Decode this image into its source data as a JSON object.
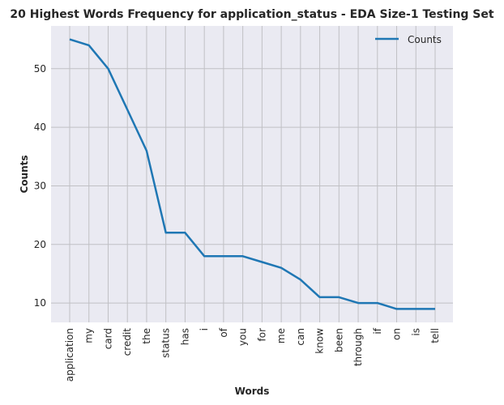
{
  "chart_data": {
    "type": "line",
    "title": "20 Highest Words Frequency for application_status - EDA Size-1 Testing Set",
    "xlabel": "Words",
    "ylabel": "Counts",
    "categories": [
      "application",
      "my",
      "card",
      "credit",
      "the",
      "status",
      "has",
      "i",
      "of",
      "you",
      "for",
      "me",
      "can",
      "know",
      "been",
      "through",
      "if",
      "on",
      "is",
      "tell"
    ],
    "series": [
      {
        "name": "Counts",
        "values": [
          55,
          54,
          50,
          43,
          36,
          22,
          22,
          18,
          18,
          18,
          17,
          16,
          14,
          11,
          11,
          10,
          10,
          9,
          9,
          9
        ]
      }
    ],
    "yticks": [
      10,
      20,
      30,
      40,
      50
    ],
    "ylim": [
      6.7,
      57.3
    ],
    "grid": true,
    "legend_position": "top-right",
    "colors": {
      "line": "#1f77b4",
      "background": "#eaeaf2",
      "grid": "#c0c0c4"
    }
  }
}
